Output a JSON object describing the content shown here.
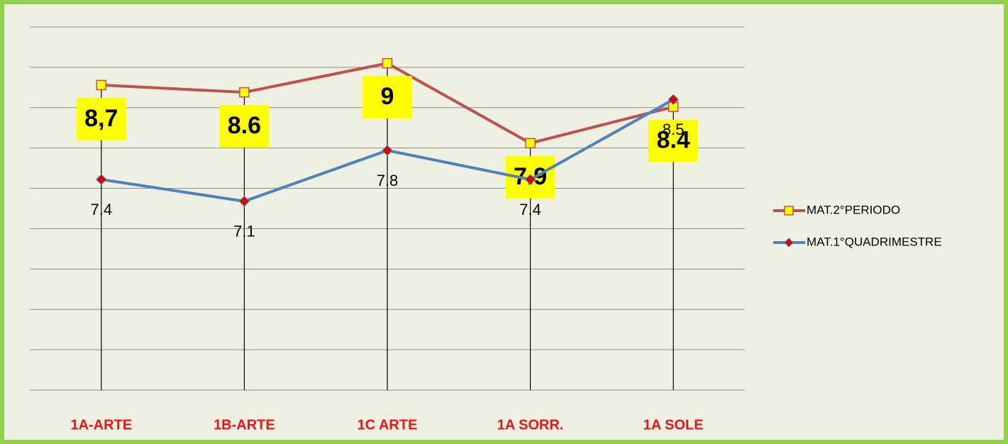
{
  "chart_data": {
    "type": "line",
    "categories": [
      "1A-ARTE",
      "1B-ARTE",
      "1C ARTE",
      "1A SORR.",
      "1A SOLE"
    ],
    "series": [
      {
        "name": "MAT.2°PERIODO",
        "color": "#c0504d",
        "marker_color": "#ffff00",
        "values": [
          8.7,
          8.6,
          9,
          7.9,
          8.4
        ],
        "value_labels": [
          "8,7",
          "8.6",
          "9",
          "7.9",
          "8.4"
        ]
      },
      {
        "name": "MAT.1°QUADRIMESTRE",
        "color": "#4f81bd",
        "marker_color": "#e00000",
        "values": [
          7.4,
          7.1,
          7.8,
          7.4,
          8.5
        ]
      }
    ],
    "ylim": [
      4.5,
      9.5
    ],
    "drop_lines": true,
    "legend": "right"
  }
}
